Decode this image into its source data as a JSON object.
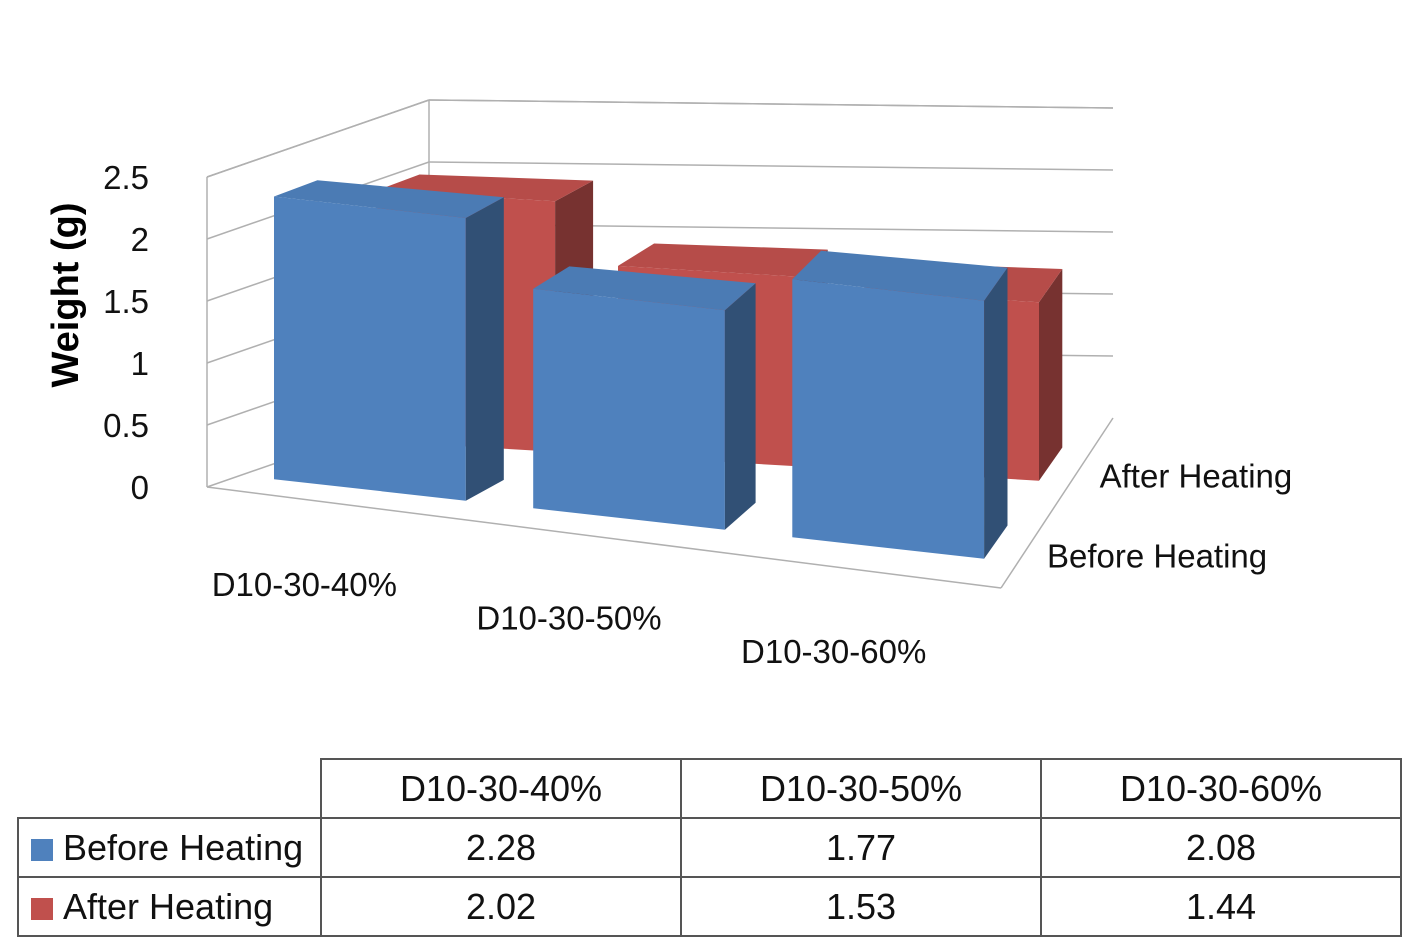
{
  "chart_data": {
    "type": "bar",
    "style": "3d-clustered",
    "title": "",
    "xlabel": "",
    "ylabel": "Weight (g)",
    "ylim": [
      0,
      2.5
    ],
    "yticks": [
      "0",
      "0.5",
      "1",
      "1.5",
      "2",
      "2.5"
    ],
    "categories": [
      "D10-30-40%",
      "D10-30-50%",
      "D10-30-60%"
    ],
    "series": [
      {
        "name": "Before Heating",
        "values": [
          2.28,
          1.77,
          2.08
        ],
        "color": "#4F81BD"
      },
      {
        "name": "After Heating",
        "values": [
          2.02,
          1.53,
          1.44
        ],
        "color": "#C0504D"
      }
    ],
    "depth_labels": [
      "After Heating",
      "Before Heating"
    ],
    "data_table": {
      "headers": [
        "D10-30-40%",
        "D10-30-50%",
        "D10-30-60%"
      ],
      "rows": [
        {
          "label": "Before Heating",
          "values": [
            "2.28",
            "1.77",
            "2.08"
          ]
        },
        {
          "label": "After Heating",
          "values": [
            "2.02",
            "1.53",
            "1.44"
          ]
        }
      ]
    }
  }
}
